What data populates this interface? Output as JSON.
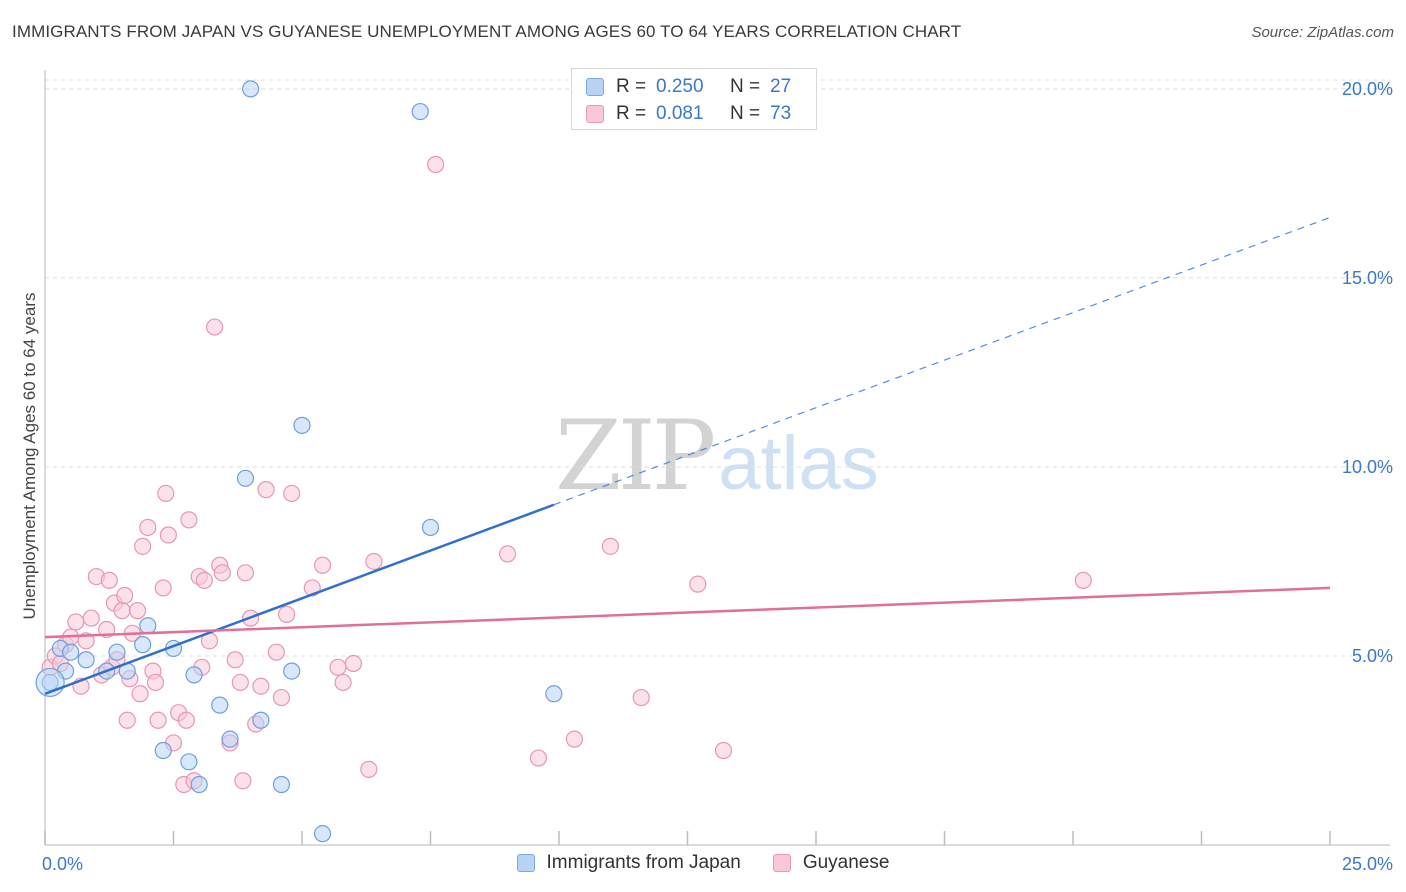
{
  "title": "IMMIGRANTS FROM JAPAN VS GUYANESE UNEMPLOYMENT AMONG AGES 60 TO 64 YEARS CORRELATION CHART",
  "source": "Source: ZipAtlas.com",
  "watermark": {
    "zip": "ZIP",
    "atlas": "atlas"
  },
  "legend_top": [
    {
      "r_label": "R =",
      "r_value": "0.250",
      "n_label": "N =",
      "n_value": "27"
    },
    {
      "r_label": "R =",
      "r_value": "0.081",
      "n_label": "N =",
      "n_value": "73"
    }
  ],
  "colors": {
    "japan_fill": "#b8d3f5",
    "japan_stroke": "#6f9fdc",
    "japan_line": "#2f6fcf",
    "guyanese_fill": "#f8c8d7",
    "guyanese_stroke": "#e996b3",
    "guyanese_line": "#e0709a",
    "axis_text": "#3a78c9",
    "grid": "#dcdcdc"
  },
  "chart_data": {
    "type": "scatter",
    "title": "IMMIGRANTS FROM JAPAN VS GUYANESE UNEMPLOYMENT AMONG AGES 60 TO 64 YEARS CORRELATION CHART",
    "xlabel": "",
    "ylabel": "Unemployment Among Ages 60 to 64 years",
    "xlim": [
      0,
      25
    ],
    "ylim": [
      0,
      20.5
    ],
    "x_tick_labels": [
      {
        "value": 0,
        "label": "0.0%"
      },
      {
        "value": 25,
        "label": "25.0%"
      }
    ],
    "y_tick_labels": [
      {
        "value": 5,
        "label": "5.0%"
      },
      {
        "value": 10,
        "label": "10.0%"
      },
      {
        "value": 15,
        "label": "15.0%"
      },
      {
        "value": 20,
        "label": "20.0%"
      }
    ],
    "x_minor_ticks": [
      0,
      2.5,
      5,
      7.5,
      10,
      12.5,
      15,
      17.5,
      20,
      22.5,
      25
    ],
    "grid": true,
    "series": [
      {
        "name": "Immigrants from Japan",
        "R": 0.25,
        "N": 27,
        "trend": {
          "x0": 0,
          "y0": 4.0,
          "x1": 9.9,
          "y1": 9.0,
          "dash_x1": 25,
          "dash_y1": 16.6
        },
        "points": [
          [
            0.1,
            4.3
          ],
          [
            0.3,
            5.2
          ],
          [
            0.4,
            4.6
          ],
          [
            0.5,
            5.1
          ],
          [
            0.8,
            4.9
          ],
          [
            1.2,
            4.6
          ],
          [
            1.4,
            5.1
          ],
          [
            1.6,
            4.6
          ],
          [
            1.9,
            5.3
          ],
          [
            2.0,
            5.8
          ],
          [
            2.3,
            2.5
          ],
          [
            2.5,
            5.2
          ],
          [
            2.8,
            2.2
          ],
          [
            2.9,
            4.5
          ],
          [
            3.0,
            1.6
          ],
          [
            3.4,
            3.7
          ],
          [
            3.6,
            2.8
          ],
          [
            3.9,
            9.7
          ],
          [
            4.0,
            20.0
          ],
          [
            4.2,
            3.3
          ],
          [
            4.6,
            1.6
          ],
          [
            4.8,
            4.6
          ],
          [
            5.0,
            11.1
          ],
          [
            5.4,
            0.3
          ],
          [
            7.3,
            19.4
          ],
          [
            7.5,
            8.4
          ],
          [
            9.9,
            4.0
          ]
        ]
      },
      {
        "name": "Guyanese",
        "R": 0.081,
        "N": 73,
        "trend": {
          "x0": 0,
          "y0": 5.5,
          "x1": 25,
          "y1": 6.8
        },
        "points": [
          [
            0.1,
            4.7
          ],
          [
            0.2,
            5.0
          ],
          [
            0.3,
            4.8
          ],
          [
            0.4,
            5.3
          ],
          [
            0.5,
            5.5
          ],
          [
            0.6,
            5.9
          ],
          [
            0.7,
            4.2
          ],
          [
            0.8,
            5.4
          ],
          [
            0.9,
            6.0
          ],
          [
            1.0,
            7.1
          ],
          [
            1.1,
            4.5
          ],
          [
            1.2,
            5.7
          ],
          [
            1.25,
            7.0
          ],
          [
            1.3,
            4.7
          ],
          [
            1.35,
            6.4
          ],
          [
            1.4,
            4.9
          ],
          [
            1.5,
            6.2
          ],
          [
            1.55,
            6.6
          ],
          [
            1.6,
            3.3
          ],
          [
            1.65,
            4.4
          ],
          [
            1.7,
            5.6
          ],
          [
            1.8,
            6.2
          ],
          [
            1.85,
            4.0
          ],
          [
            1.9,
            7.9
          ],
          [
            2.0,
            8.4
          ],
          [
            2.1,
            4.6
          ],
          [
            2.15,
            4.3
          ],
          [
            2.2,
            3.3
          ],
          [
            2.3,
            6.8
          ],
          [
            2.35,
            9.3
          ],
          [
            2.4,
            8.2
          ],
          [
            2.5,
            2.7
          ],
          [
            2.6,
            3.5
          ],
          [
            2.7,
            1.6
          ],
          [
            2.75,
            3.3
          ],
          [
            2.8,
            8.6
          ],
          [
            2.9,
            1.7
          ],
          [
            3.0,
            7.1
          ],
          [
            3.05,
            4.7
          ],
          [
            3.1,
            7.0
          ],
          [
            3.2,
            5.4
          ],
          [
            3.3,
            13.7
          ],
          [
            3.4,
            7.4
          ],
          [
            3.45,
            7.2
          ],
          [
            3.6,
            2.7
          ],
          [
            3.7,
            4.9
          ],
          [
            3.8,
            4.3
          ],
          [
            3.85,
            1.7
          ],
          [
            3.9,
            7.2
          ],
          [
            4.0,
            6.0
          ],
          [
            4.1,
            3.2
          ],
          [
            4.2,
            4.2
          ],
          [
            4.3,
            9.4
          ],
          [
            4.5,
            5.1
          ],
          [
            4.6,
            3.9
          ],
          [
            4.7,
            6.1
          ],
          [
            4.8,
            9.3
          ],
          [
            5.2,
            6.8
          ],
          [
            5.4,
            7.4
          ],
          [
            5.7,
            4.7
          ],
          [
            5.8,
            4.3
          ],
          [
            6.0,
            4.8
          ],
          [
            6.3,
            2.0
          ],
          [
            6.4,
            7.5
          ],
          [
            7.6,
            18.0
          ],
          [
            9.0,
            7.7
          ],
          [
            9.6,
            2.3
          ],
          [
            10.3,
            2.8
          ],
          [
            11.0,
            7.9
          ],
          [
            11.6,
            3.9
          ],
          [
            12.7,
            6.9
          ],
          [
            13.2,
            2.5
          ],
          [
            20.2,
            7.0
          ]
        ]
      }
    ],
    "legend_position": "top-center"
  }
}
